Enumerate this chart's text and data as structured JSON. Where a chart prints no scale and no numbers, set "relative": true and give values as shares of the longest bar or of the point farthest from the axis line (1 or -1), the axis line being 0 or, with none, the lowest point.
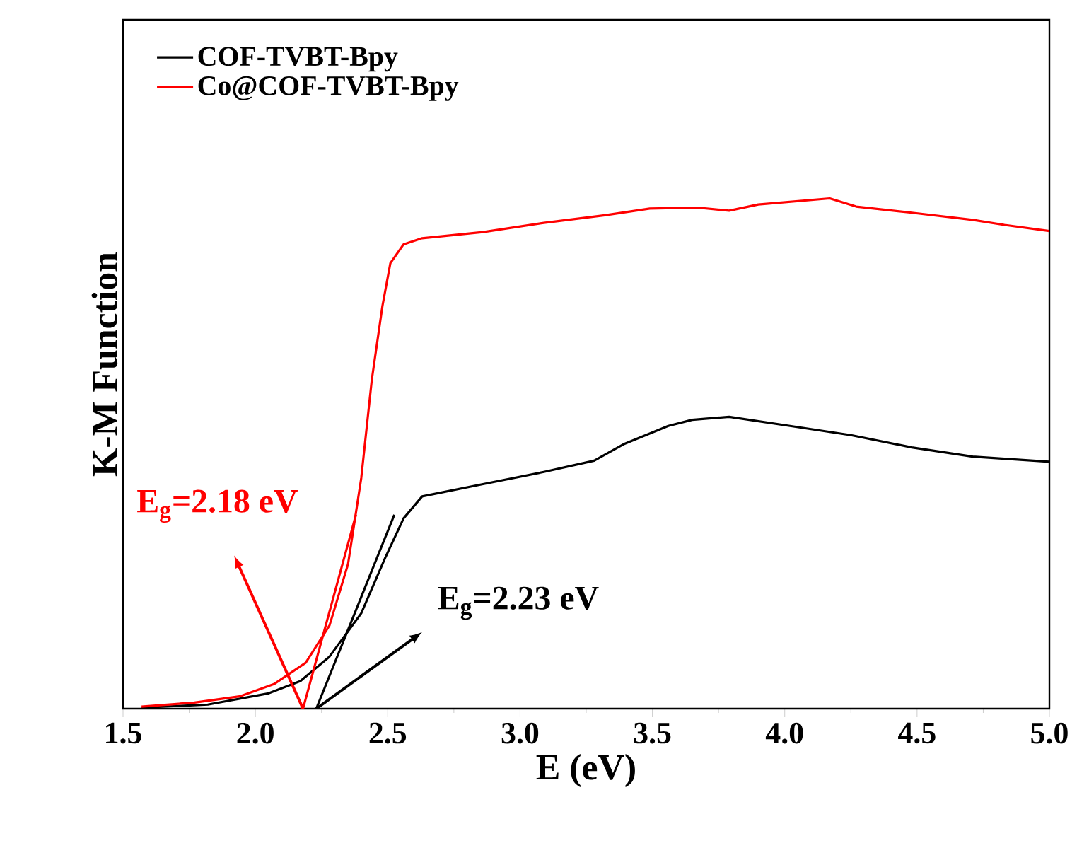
{
  "chart_data": {
    "type": "line",
    "xlabel": "E (eV)",
    "ylabel": "K-M Function",
    "relative": true,
    "xlim": [
      1.5,
      5.0
    ],
    "xticks": [
      {
        "value": 1.5,
        "label": "1.5"
      },
      {
        "value": 2.0,
        "label": "2.0"
      },
      {
        "value": 2.5,
        "label": "2.5"
      },
      {
        "value": 3.0,
        "label": "3.0"
      },
      {
        "value": 3.5,
        "label": "3.5"
      },
      {
        "value": 4.0,
        "label": "4.0"
      },
      {
        "value": 4.5,
        "label": "4.5"
      },
      {
        "value": 5.0,
        "label": "5.0"
      }
    ],
    "legend": "top left",
    "series": [
      {
        "name": "COF-TVBT-Bpy",
        "color": "#000000",
        "x": [
          1.57,
          1.82,
          2.05,
          2.17,
          2.28,
          2.4,
          2.49,
          2.56,
          2.63,
          2.86,
          3.09,
          3.28,
          3.39,
          3.56,
          3.65,
          3.79,
          4.02,
          4.25,
          4.48,
          4.71,
          5.0
        ],
        "values": [
          0.002,
          0.008,
          0.03,
          0.054,
          0.102,
          0.187,
          0.295,
          0.373,
          0.416,
          0.44,
          0.464,
          0.486,
          0.518,
          0.554,
          0.566,
          0.572,
          0.554,
          0.536,
          0.512,
          0.494,
          0.484
        ]
      },
      {
        "name": "Co@COF-TVBT-Bpy",
        "color": "#ff0000",
        "x": [
          1.57,
          1.77,
          1.94,
          2.07,
          2.19,
          2.28,
          2.35,
          2.4,
          2.44,
          2.48,
          2.51,
          2.56,
          2.63,
          2.86,
          3.09,
          3.32,
          3.49,
          3.67,
          3.79,
          3.9,
          4.17,
          4.27,
          4.48,
          4.71,
          4.83,
          5.0
        ],
        "values": [
          0.004,
          0.012,
          0.024,
          0.048,
          0.09,
          0.163,
          0.283,
          0.452,
          0.645,
          0.789,
          0.873,
          0.91,
          0.922,
          0.934,
          0.952,
          0.967,
          0.98,
          0.982,
          0.976,
          0.988,
          1.0,
          0.984,
          0.972,
          0.958,
          0.948,
          0.936
        ]
      },
      {
        "type": "line",
        "color": "#000000",
        "x": [
          2.23,
          2.525
        ],
        "values": [
          0,
          0.38
        ]
      },
      {
        "type": "line",
        "color": "#ff0000",
        "x": [
          2.18,
          2.38
        ],
        "values": [
          0,
          0.38
        ]
      }
    ],
    "annotations": [
      {
        "text": "E$_{g}$=2.18 eV",
        "x": 2.18,
        "y": 0
      },
      {
        "text": "E$_{g}$=2.23 eV",
        "x": 2.23,
        "y": 0
      }
    ]
  }
}
